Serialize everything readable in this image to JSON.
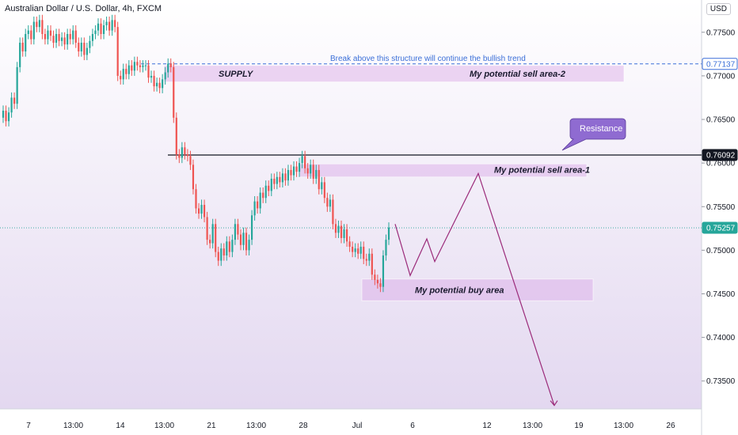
{
  "header": {
    "title": "Australian Dollar / U.S. Dollar, 4h, FXCM",
    "currency": "USD"
  },
  "colors": {
    "bull": "#26a69a",
    "bear": "#ef5350",
    "zone": "#d9a6e6",
    "path": "#9b2b7a",
    "callout": "#8f6bd1",
    "dashed": "#3b6fd8",
    "background_top": "#ffffff",
    "background_bottom": "#e3d8f0"
  },
  "annotations": {
    "break_text": "Break above this structure will continue the bullish trend",
    "supply": "SUPPLY",
    "sell2": "My potential sell area-2",
    "sell1": "My potential sell area-1",
    "buy": "My potential buy area",
    "resistance": "Resistance"
  },
  "chart_data": {
    "type": "candlestick",
    "ylim": [
      0.7318,
      0.7787
    ],
    "y_ticks": [
      "0.77500",
      "0.77000",
      "0.76500",
      "0.76000",
      "0.75500",
      "0.75000",
      "0.74500",
      "0.74000",
      "0.73500"
    ],
    "x_ticks": [
      "7",
      "13:00",
      "14",
      "13:00",
      "21",
      "13:00",
      "28",
      "Jul",
      "6",
      "12",
      "13:00",
      "19",
      "13:00",
      "26"
    ],
    "price_labels": {
      "dashed_level": "0.77137",
      "resistance": "0.76092",
      "last": "0.75257"
    },
    "levels": {
      "dashed": 0.77137,
      "resistance": 0.76092,
      "last": 0.75257
    },
    "zones": [
      {
        "name": "supply",
        "y_top": 0.7712,
        "y_bottom": 0.7693
      },
      {
        "name": "sell1",
        "y_top": 0.7599,
        "y_bottom": 0.7584
      },
      {
        "name": "buy",
        "y_top": 0.7467,
        "y_bottom": 0.7442
      }
    ],
    "projected_path": [
      0.753,
      0.7471,
      0.7513,
      0.7487,
      0.7588,
      0.7322
    ],
    "candles": [
      {
        "o": 0.7652,
        "c": 0.766
      },
      {
        "o": 0.766,
        "c": 0.7648
      },
      {
        "o": 0.7648,
        "c": 0.7658
      },
      {
        "o": 0.7658,
        "c": 0.7675
      },
      {
        "o": 0.7675,
        "c": 0.7668
      },
      {
        "o": 0.7668,
        "c": 0.771
      },
      {
        "o": 0.771,
        "c": 0.7738
      },
      {
        "o": 0.7738,
        "c": 0.7728
      },
      {
        "o": 0.7728,
        "c": 0.7748
      },
      {
        "o": 0.7748,
        "c": 0.7752
      },
      {
        "o": 0.7752,
        "c": 0.7742
      },
      {
        "o": 0.7742,
        "c": 0.7762
      },
      {
        "o": 0.7762,
        "c": 0.7756
      },
      {
        "o": 0.7756,
        "c": 0.7764
      },
      {
        "o": 0.7764,
        "c": 0.7748
      },
      {
        "o": 0.7748,
        "c": 0.7742
      },
      {
        "o": 0.7742,
        "c": 0.7752
      },
      {
        "o": 0.7752,
        "c": 0.7746
      },
      {
        "o": 0.7746,
        "c": 0.7738
      },
      {
        "o": 0.7738,
        "c": 0.7748
      },
      {
        "o": 0.7748,
        "c": 0.774
      },
      {
        "o": 0.774,
        "c": 0.7744
      },
      {
        "o": 0.7744,
        "c": 0.7736
      },
      {
        "o": 0.7736,
        "c": 0.7748
      },
      {
        "o": 0.7748,
        "c": 0.7742
      },
      {
        "o": 0.7742,
        "c": 0.7752
      },
      {
        "o": 0.7752,
        "c": 0.7738
      },
      {
        "o": 0.7738,
        "c": 0.7728
      },
      {
        "o": 0.7728,
        "c": 0.7738
      },
      {
        "o": 0.7738,
        "c": 0.7724
      },
      {
        "o": 0.7724,
        "c": 0.7732
      },
      {
        "o": 0.7732,
        "c": 0.774
      },
      {
        "o": 0.774,
        "c": 0.7748
      },
      {
        "o": 0.7748,
        "c": 0.7752
      },
      {
        "o": 0.7752,
        "c": 0.776
      },
      {
        "o": 0.776,
        "c": 0.7748
      },
      {
        "o": 0.7748,
        "c": 0.7758
      },
      {
        "o": 0.7758,
        "c": 0.7762
      },
      {
        "o": 0.7762,
        "c": 0.7752
      },
      {
        "o": 0.7752,
        "c": 0.7764
      },
      {
        "o": 0.7764,
        "c": 0.7756
      },
      {
        "o": 0.7756,
        "c": 0.77
      },
      {
        "o": 0.77,
        "c": 0.7696
      },
      {
        "o": 0.7696,
        "c": 0.7708
      },
      {
        "o": 0.7708,
        "c": 0.7702
      },
      {
        "o": 0.7702,
        "c": 0.7712
      },
      {
        "o": 0.7712,
        "c": 0.7706
      },
      {
        "o": 0.7706,
        "c": 0.7716
      },
      {
        "o": 0.7716,
        "c": 0.7712
      },
      {
        "o": 0.7712,
        "c": 0.771
      },
      {
        "o": 0.771,
        "c": 0.7712
      },
      {
        "o": 0.7712,
        "c": 0.7712
      },
      {
        "o": 0.7712,
        "c": 0.7698
      },
      {
        "o": 0.7698,
        "c": 0.77
      },
      {
        "o": 0.77,
        "c": 0.7688
      },
      {
        "o": 0.7688,
        "c": 0.7692
      },
      {
        "o": 0.7692,
        "c": 0.7686
      },
      {
        "o": 0.7686,
        "c": 0.7696
      },
      {
        "o": 0.7696,
        "c": 0.7704
      },
      {
        "o": 0.7704,
        "c": 0.7714
      },
      {
        "o": 0.7714,
        "c": 0.771
      },
      {
        "o": 0.771,
        "c": 0.7652
      },
      {
        "o": 0.7652,
        "c": 0.761
      },
      {
        "o": 0.761,
        "c": 0.7606
      },
      {
        "o": 0.7606,
        "c": 0.7618
      },
      {
        "o": 0.7618,
        "c": 0.761
      },
      {
        "o": 0.761,
        "c": 0.7608
      },
      {
        "o": 0.7608,
        "c": 0.7598
      },
      {
        "o": 0.7598,
        "c": 0.757
      },
      {
        "o": 0.757,
        "c": 0.7548
      },
      {
        "o": 0.7548,
        "c": 0.7542
      },
      {
        "o": 0.7542,
        "c": 0.7552
      },
      {
        "o": 0.7552,
        "c": 0.7538
      },
      {
        "o": 0.7538,
        "c": 0.7512
      },
      {
        "o": 0.7512,
        "c": 0.7508
      },
      {
        "o": 0.7508,
        "c": 0.753
      },
      {
        "o": 0.753,
        "c": 0.7498
      },
      {
        "o": 0.7498,
        "c": 0.7488
      },
      {
        "o": 0.7488,
        "c": 0.7502
      },
      {
        "o": 0.7502,
        "c": 0.7494
      },
      {
        "o": 0.7494,
        "c": 0.751
      },
      {
        "o": 0.751,
        "c": 0.7498
      },
      {
        "o": 0.7498,
        "c": 0.7512
      },
      {
        "o": 0.7512,
        "c": 0.753
      },
      {
        "o": 0.753,
        "c": 0.7518
      },
      {
        "o": 0.7518,
        "c": 0.7506
      },
      {
        "o": 0.7506,
        "c": 0.752
      },
      {
        "o": 0.752,
        "c": 0.75
      },
      {
        "o": 0.75,
        "c": 0.7512
      },
      {
        "o": 0.7512,
        "c": 0.754
      },
      {
        "o": 0.754,
        "c": 0.7556
      },
      {
        "o": 0.7556,
        "c": 0.7548
      },
      {
        "o": 0.7548,
        "c": 0.7566
      },
      {
        "o": 0.7566,
        "c": 0.756
      },
      {
        "o": 0.756,
        "c": 0.7574
      },
      {
        "o": 0.7574,
        "c": 0.7568
      },
      {
        "o": 0.7568,
        "c": 0.7582
      },
      {
        "o": 0.7582,
        "c": 0.7576
      },
      {
        "o": 0.7576,
        "c": 0.7584
      },
      {
        "o": 0.7584,
        "c": 0.7578
      },
      {
        "o": 0.7578,
        "c": 0.7588
      },
      {
        "o": 0.7588,
        "c": 0.758
      },
      {
        "o": 0.758,
        "c": 0.7592
      },
      {
        "o": 0.7592,
        "c": 0.7586
      },
      {
        "o": 0.7586,
        "c": 0.7596
      },
      {
        "o": 0.7596,
        "c": 0.759
      },
      {
        "o": 0.759,
        "c": 0.76
      },
      {
        "o": 0.76,
        "c": 0.7608
      },
      {
        "o": 0.7608,
        "c": 0.7594
      },
      {
        "o": 0.7594,
        "c": 0.7588
      },
      {
        "o": 0.7588,
        "c": 0.7598
      },
      {
        "o": 0.7598,
        "c": 0.7582
      },
      {
        "o": 0.7582,
        "c": 0.7592
      },
      {
        "o": 0.7592,
        "c": 0.757
      },
      {
        "o": 0.757,
        "c": 0.7578
      },
      {
        "o": 0.7578,
        "c": 0.756
      },
      {
        "o": 0.756,
        "c": 0.755
      },
      {
        "o": 0.755,
        "c": 0.7558
      },
      {
        "o": 0.7558,
        "c": 0.753
      },
      {
        "o": 0.753,
        "c": 0.752
      },
      {
        "o": 0.752,
        "c": 0.7528
      },
      {
        "o": 0.7528,
        "c": 0.7514
      },
      {
        "o": 0.7514,
        "c": 0.7524
      },
      {
        "o": 0.7524,
        "c": 0.751
      },
      {
        "o": 0.751,
        "c": 0.7504
      },
      {
        "o": 0.7504,
        "c": 0.7498
      },
      {
        "o": 0.7498,
        "c": 0.7502
      },
      {
        "o": 0.7502,
        "c": 0.7496
      },
      {
        "o": 0.7496,
        "c": 0.7504
      },
      {
        "o": 0.7504,
        "c": 0.749
      },
      {
        "o": 0.749,
        "c": 0.7488
      },
      {
        "o": 0.7488,
        "c": 0.7496
      },
      {
        "o": 0.7496,
        "c": 0.7472
      },
      {
        "o": 0.7472,
        "c": 0.7466
      },
      {
        "o": 0.7466,
        "c": 0.7462
      },
      {
        "o": 0.7462,
        "c": 0.7458
      },
      {
        "o": 0.7458,
        "c": 0.7494
      },
      {
        "o": 0.7494,
        "c": 0.7512
      },
      {
        "o": 0.7512,
        "c": 0.7526
      }
    ]
  }
}
